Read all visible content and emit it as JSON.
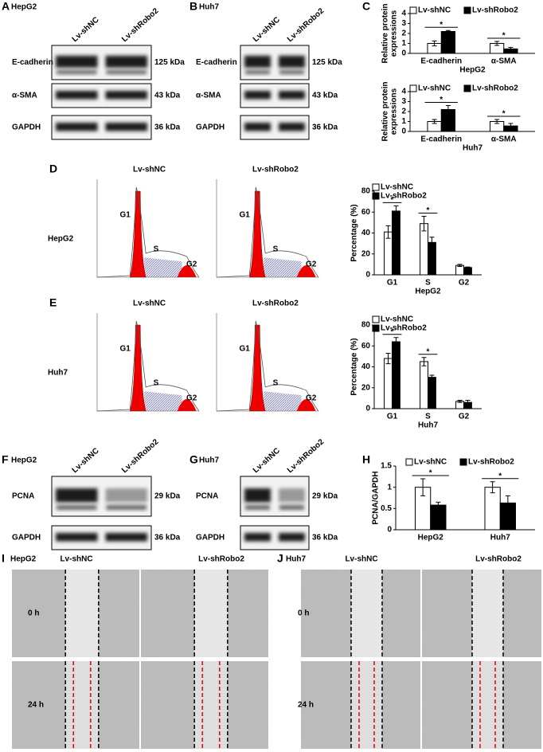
{
  "panel_labels": {
    "C": "C",
    "H": "H"
  },
  "blots": [
    {
      "label": "A",
      "cell": "HepG2",
      "lanes": [
        "Lv-shNC",
        "Lv-shRobo2"
      ],
      "rows": [
        {
          "protein": "E-cadherin",
          "size": "125 kDa"
        },
        {
          "protein": "α-SMA",
          "size": "43 kDa"
        },
        {
          "protein": "GAPDH",
          "size": "36 kDa"
        }
      ]
    },
    {
      "label": "B",
      "cell": "Huh7",
      "lanes": [
        "Lv-shNC",
        "Lv-shRobo2"
      ],
      "rows": [
        {
          "protein": "E-cadherin",
          "size": "125 kDa"
        },
        {
          "protein": "α-SMA",
          "size": "43 kDa"
        },
        {
          "protein": "GAPDH",
          "size": "36 kDa"
        }
      ]
    },
    {
      "label": "F",
      "cell": "HepG2",
      "lanes": [
        "Lv-shNC",
        "Lv-shRobo2"
      ],
      "rows": [
        {
          "protein": "PCNA",
          "size": "29 kDa"
        },
        {
          "protein": "GAPDH",
          "size": "36 kDa"
        }
      ]
    },
    {
      "label": "G",
      "cell": "Huh7",
      "lanes": [
        "Lv-shNC",
        "Lv-shRobo2"
      ],
      "rows": [
        {
          "protein": "PCNA",
          "size": "29 kDa"
        },
        {
          "protein": "GAPDH",
          "size": "36 kDa"
        }
      ]
    }
  ],
  "flow": [
    {
      "label": "D",
      "cell": "HepG2",
      "conditions": [
        "Lv-shNC",
        "Lv-shRobo2"
      ],
      "phases": [
        "G1",
        "S",
        "G2"
      ]
    },
    {
      "label": "E",
      "cell": "Huh7",
      "conditions": [
        "Lv-shNC",
        "Lv-shRobo2"
      ],
      "phases": [
        "G1",
        "S",
        "G2"
      ]
    }
  ],
  "wound": [
    {
      "label": "I",
      "cell": "HepG2",
      "conditions": [
        "Lv-shNC",
        "Lv-shRobo2"
      ],
      "times": [
        "0 h",
        "24 h"
      ]
    },
    {
      "label": "J",
      "cell": "Huh7",
      "conditions": [
        "Lv-shNC",
        "Lv-shRobo2"
      ],
      "times": [
        "0 h",
        "24 h"
      ]
    }
  ],
  "chart_data": [
    {
      "type": "bar",
      "ylabel": [
        "Relative protein",
        "expressions"
      ],
      "xlabel": "HepG2",
      "categories": [
        "E-cadherin",
        "α-SMA"
      ],
      "ylim": [
        0,
        4
      ],
      "yticks": [
        0,
        1,
        2,
        3,
        4
      ],
      "significance": [
        "*",
        "*"
      ],
      "series": [
        {
          "name": "Lv-shNC",
          "color": "#ffffff",
          "values": [
            1,
            1
          ],
          "errors": [
            0.25,
            0.2
          ]
        },
        {
          "name": "Lv-shRobo2",
          "color": "#000000",
          "values": [
            2.2,
            0.45
          ],
          "errors": [
            0.1,
            0.15
          ]
        }
      ]
    },
    {
      "type": "bar",
      "ylabel": [
        "Relative protein",
        "expressions"
      ],
      "xlabel": "Huh7",
      "categories": [
        "E-cadherin",
        "α-SMA"
      ],
      "ylim": [
        0,
        4
      ],
      "yticks": [
        0,
        1,
        2,
        3,
        4
      ],
      "significance": [
        "*",
        "*"
      ],
      "series": [
        {
          "name": "Lv-shNC",
          "color": "#ffffff",
          "values": [
            1,
            1
          ],
          "errors": [
            0.2,
            0.2
          ]
        },
        {
          "name": "Lv-shRobo2",
          "color": "#000000",
          "values": [
            2.2,
            0.55
          ],
          "errors": [
            0.4,
            0.25
          ]
        }
      ]
    },
    {
      "type": "bar",
      "ylabel": [
        "Percentage (%)"
      ],
      "xlabel": "HepG2",
      "categories": [
        "G1",
        "S",
        "G2"
      ],
      "ylim": [
        0,
        80
      ],
      "yticks": [
        0,
        20,
        40,
        60,
        80
      ],
      "significance": [
        "*",
        "*",
        null
      ],
      "series": [
        {
          "name": "Lv-shNC",
          "color": "#ffffff",
          "values": [
            41,
            49,
            9
          ],
          "errors": [
            6,
            7,
            1
          ]
        },
        {
          "name": "Lv-shRobo2",
          "color": "#000000",
          "values": [
            61,
            31,
            7
          ],
          "errors": [
            5,
            5,
            0.5
          ]
        }
      ]
    },
    {
      "type": "bar",
      "ylabel": [
        "Percentage (%)"
      ],
      "xlabel": "Huh7",
      "categories": [
        "G1",
        "S",
        "G2"
      ],
      "ylim": [
        0,
        80
      ],
      "yticks": [
        0,
        20,
        40,
        60,
        80
      ],
      "significance": [
        "*",
        "*",
        null
      ],
      "series": [
        {
          "name": "Lv-shNC",
          "color": "#ffffff",
          "values": [
            48,
            45,
            7
          ],
          "errors": [
            5,
            4,
            1
          ]
        },
        {
          "name": "Lv-shRobo2",
          "color": "#000000",
          "values": [
            64,
            30,
            6
          ],
          "errors": [
            4,
            2,
            2
          ]
        }
      ]
    },
    {
      "type": "bar",
      "ylabel": [
        "PCNA/GAPDH"
      ],
      "xlabel": null,
      "categories": [
        "HepG2",
        "Huh7"
      ],
      "ylim": [
        0,
        1.5
      ],
      "yticks": [
        0,
        0.5,
        1,
        1.5
      ],
      "significance": [
        "*",
        "*"
      ],
      "series": [
        {
          "name": "Lv-shNC",
          "color": "#ffffff",
          "values": [
            1,
            1
          ],
          "errors": [
            0.2,
            0.13
          ]
        },
        {
          "name": "Lv-shRobo2",
          "color": "#000000",
          "values": [
            0.58,
            0.63
          ],
          "errors": [
            0.07,
            0.17
          ]
        }
      ]
    }
  ]
}
